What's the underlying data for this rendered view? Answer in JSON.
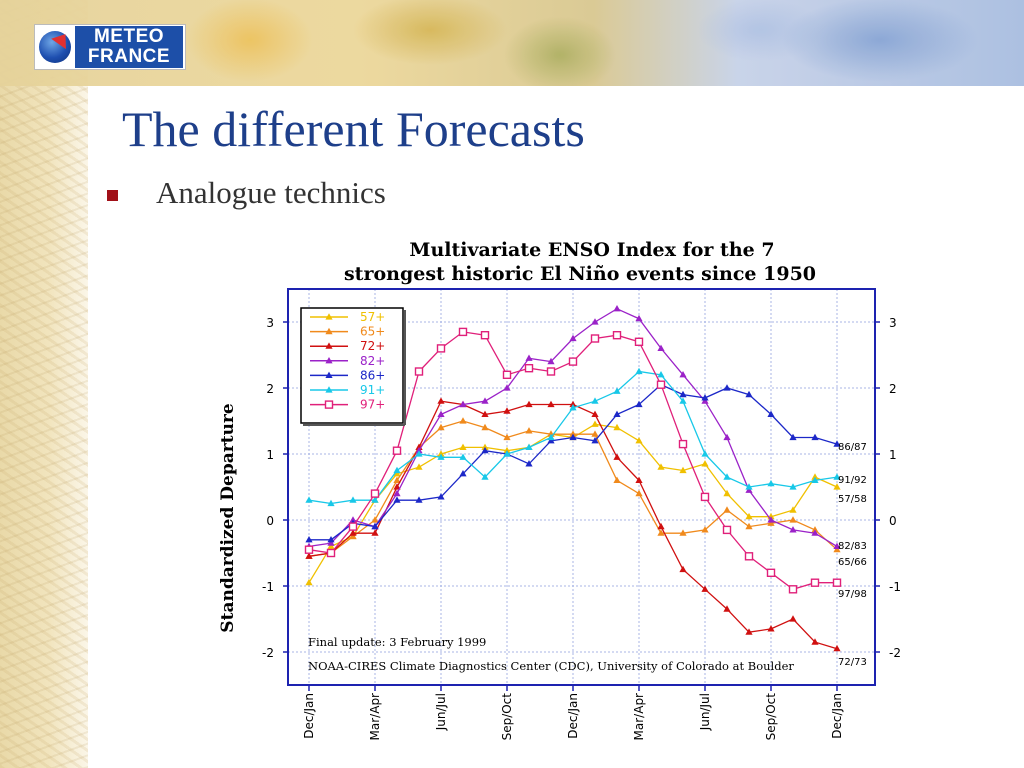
{
  "logo": {
    "line1": "METEO",
    "line2": "FRANCE"
  },
  "slide": {
    "title": "The different Forecasts",
    "bullet": "Analogue technics"
  },
  "colors": {
    "title": "#1e3f8a",
    "bullet": "#a11018",
    "frame": "#1d23b0"
  },
  "chart_data": {
    "type": "line",
    "title": "Multivariate ENSO Index for the 7",
    "subtitle": "strongest historic El Niño events since 1950",
    "ylabel": "Standardized Departure",
    "xlabel": "",
    "ylim": [
      -2.5,
      3.5
    ],
    "yticks": [
      3,
      2,
      1,
      0,
      -1,
      -2
    ],
    "x": [
      "Dec/Jan",
      "Jan/Feb",
      "Feb/Mar",
      "Mar/Apr",
      "Apr/May",
      "May/Jun",
      "Jun/Jul",
      "Jul/Aug",
      "Aug/Sep",
      "Sep/Oct",
      "Oct/Nov",
      "Nov/Dec",
      "Dec/Jan",
      "Jan/Feb",
      "Feb/Mar",
      "Mar/Apr",
      "Apr/May",
      "May/Jun",
      "Jun/Jul",
      "Jul/Aug",
      "Aug/Sep",
      "Sep/Oct",
      "Oct/Nov",
      "Nov/Dec",
      "Dec/Jan"
    ],
    "x_tick_labels": [
      "Dec/Jan",
      "Mar/Apr",
      "Jun/Jul",
      "Sep/Oct",
      "Dec/Jan",
      "Mar/Apr",
      "Jun/Jul",
      "Sep/Oct",
      "Dec/Jan"
    ],
    "legend_position": "top-left",
    "grid": true,
    "series": [
      {
        "name": "57+",
        "color": "#f0c000",
        "marker": "triangle",
        "end_label": "57/58",
        "values": [
          -0.95,
          -0.4,
          -0.25,
          0.3,
          0.7,
          0.8,
          1.0,
          1.1,
          1.1,
          1.05,
          1.1,
          1.3,
          1.25,
          1.45,
          1.4,
          1.2,
          0.8,
          0.75,
          0.85,
          0.4,
          0.05,
          0.05,
          0.15,
          0.65,
          0.5
        ]
      },
      {
        "name": "65+",
        "color": "#f08a1c",
        "marker": "triangle",
        "end_label": "65/66",
        "values": [
          -0.55,
          -0.5,
          -0.25,
          0.0,
          0.6,
          1.1,
          1.4,
          1.5,
          1.4,
          1.25,
          1.35,
          1.3,
          1.3,
          1.3,
          0.6,
          0.4,
          -0.2,
          -0.2,
          -0.15,
          0.15,
          -0.1,
          -0.05,
          0.0,
          -0.15,
          -0.45
        ]
      },
      {
        "name": "72+",
        "color": "#d01010",
        "marker": "triangle",
        "end_label": "72/73",
        "values": [
          -0.55,
          -0.5,
          -0.2,
          -0.2,
          0.5,
          1.1,
          1.8,
          1.75,
          1.6,
          1.65,
          1.75,
          1.75,
          1.75,
          1.6,
          0.95,
          0.6,
          -0.1,
          -0.75,
          -1.05,
          -1.35,
          -1.7,
          -1.65,
          -1.5,
          -1.85,
          -1.95
        ]
      },
      {
        "name": "82+",
        "color": "#9b22c8",
        "marker": "triangle",
        "end_label": "82/83",
        "values": [
          -0.4,
          -0.35,
          0.0,
          -0.1,
          0.4,
          1.05,
          1.6,
          1.75,
          1.8,
          2.0,
          2.45,
          2.4,
          2.75,
          3.0,
          3.2,
          3.05,
          2.6,
          2.2,
          1.8,
          1.25,
          0.45,
          0.0,
          -0.15,
          -0.2,
          -0.4
        ]
      },
      {
        "name": "86+",
        "color": "#1c28c8",
        "marker": "triangle",
        "end_label": "86/87",
        "values": [
          -0.3,
          -0.3,
          -0.05,
          -0.1,
          0.3,
          0.3,
          0.35,
          0.7,
          1.05,
          1.0,
          0.85,
          1.2,
          1.25,
          1.2,
          1.6,
          1.75,
          2.05,
          1.9,
          1.85,
          2.0,
          1.9,
          1.6,
          1.25,
          1.25,
          1.15
        ]
      },
      {
        "name": "91+",
        "color": "#18c8e8",
        "marker": "triangle",
        "end_label": "91/92",
        "values": [
          0.3,
          0.25,
          0.3,
          0.3,
          0.75,
          1.0,
          0.95,
          0.95,
          0.65,
          1.0,
          1.1,
          1.25,
          1.7,
          1.8,
          1.95,
          2.25,
          2.2,
          1.8,
          1.0,
          0.65,
          0.5,
          0.55,
          0.5,
          0.6,
          0.65
        ]
      },
      {
        "name": "97+",
        "color": "#e0207a",
        "marker": "square",
        "end_label": "97/98",
        "values": [
          -0.45,
          -0.5,
          -0.1,
          0.4,
          1.05,
          2.25,
          2.6,
          2.85,
          2.8,
          2.2,
          2.3,
          2.25,
          2.4,
          2.75,
          2.8,
          2.7,
          2.05,
          1.15,
          0.35,
          -0.15,
          -0.55,
          -0.8,
          -1.05,
          -0.95,
          -0.95
        ]
      }
    ],
    "annotations": [
      "Final update:  3 February 1999",
      "NOAA-CIRES Climate Diagnostics Center (CDC), University of Colorado at Boulder"
    ]
  }
}
